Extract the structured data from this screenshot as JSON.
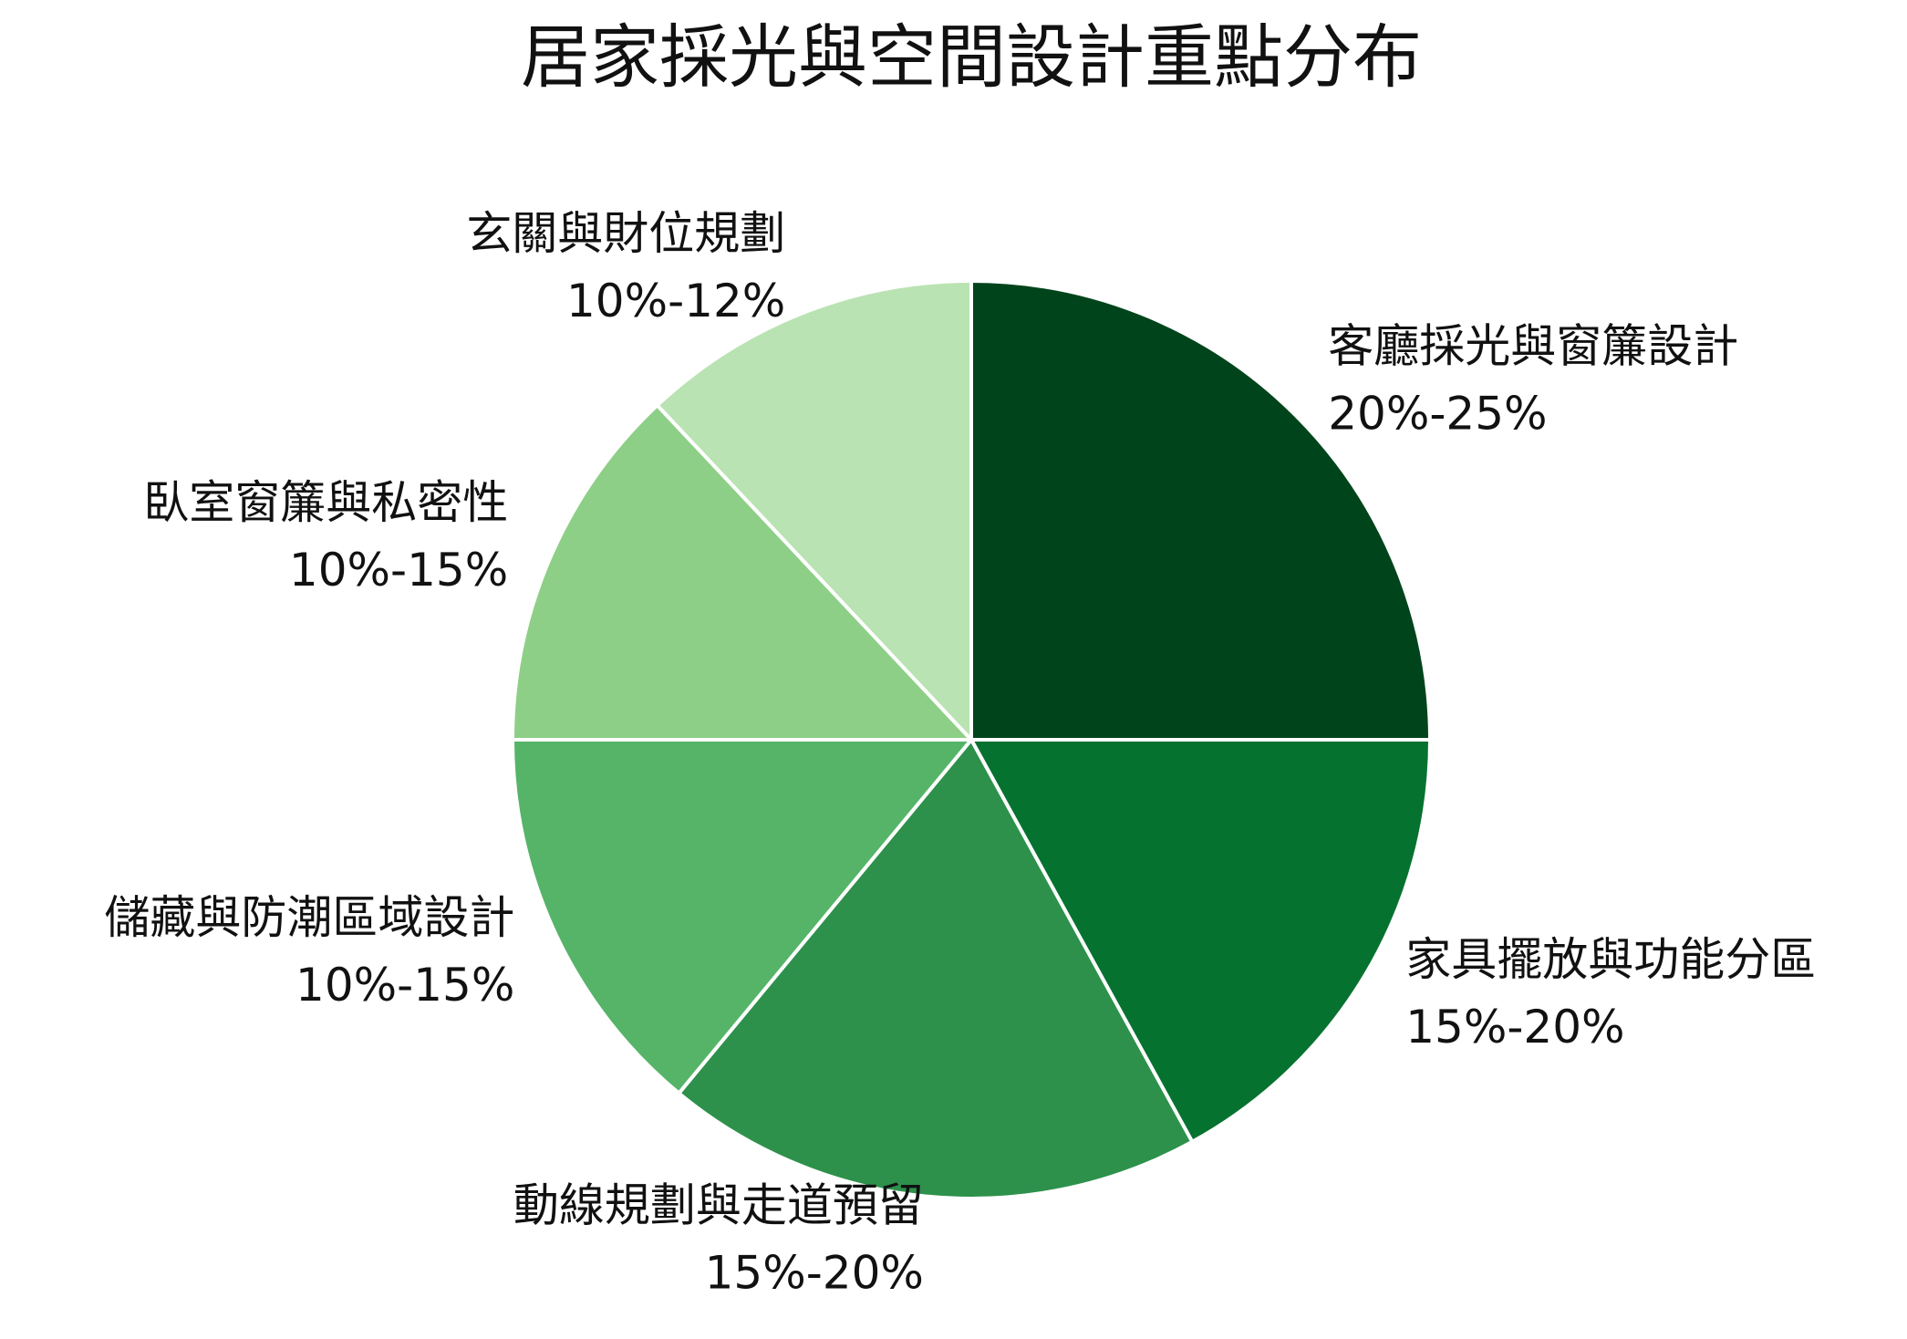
{
  "chart_data": {
    "type": "pie",
    "title": "居家採光與空間設計重點分布",
    "categories": [
      "客廳採光與窗簾設計",
      "家具擺放與功能分區",
      "動線規劃與走道預留",
      "儲藏與防潮區域設計",
      "臥室窗簾與私密性",
      "玄關與財位規劃"
    ],
    "values": [
      25,
      17,
      19,
      14,
      13,
      12
    ],
    "value_labels": [
      "20%-25%",
      "15%-20%",
      "15%-20%",
      "10%-15%",
      "10%-15%",
      "10%-12%"
    ],
    "colors": [
      "#00441b",
      "#067230",
      "#2d914b",
      "#55b468",
      "#8ecf87",
      "#b9e3b2"
    ]
  }
}
